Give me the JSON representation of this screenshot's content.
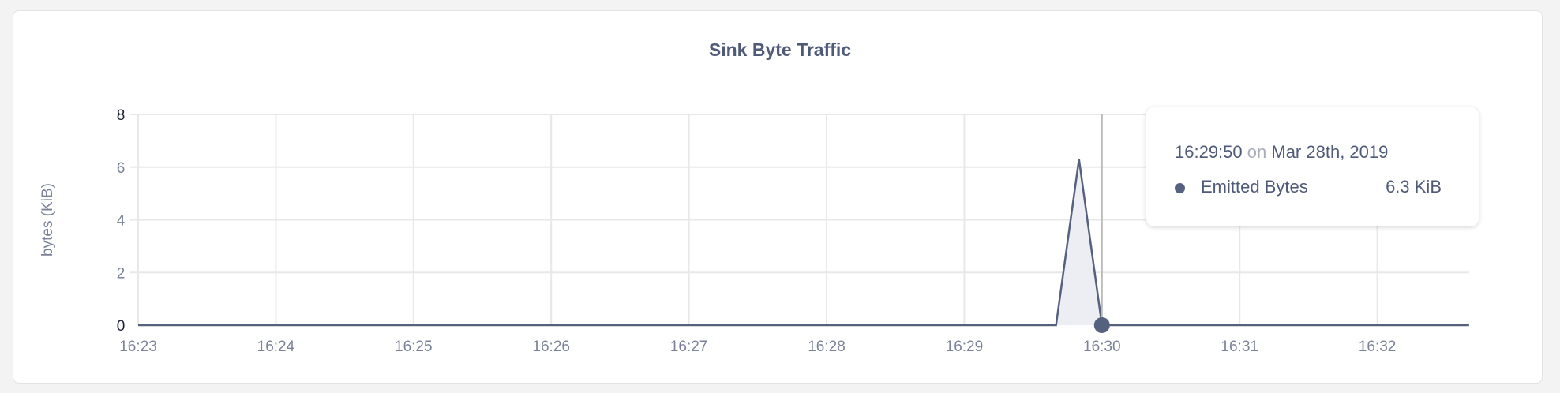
{
  "chart_data": {
    "type": "area",
    "title": "Sink Byte Traffic",
    "ylabel": "bytes (KiB)",
    "xlabel": "",
    "ylim": [
      0,
      8
    ],
    "yticks": [
      "0",
      "2",
      "4",
      "6",
      "8"
    ],
    "xticks": [
      "16:23",
      "16:24",
      "16:25",
      "16:26",
      "16:27",
      "16:28",
      "16:29",
      "16:30",
      "16:31",
      "16:32"
    ],
    "xlim": [
      "16:23:00",
      "16:32:40"
    ],
    "grid": true,
    "series": [
      {
        "name": "Emitted Bytes",
        "color": "#56617f",
        "x": [
          "16:23:00",
          "16:29:40",
          "16:29:50",
          "16:30:00",
          "16:32:40"
        ],
        "y": [
          0,
          0,
          6.3,
          0,
          0
        ]
      }
    ],
    "hover_x": "16:30:00"
  },
  "tooltip": {
    "time": "16:29:50",
    "on": "on",
    "date": "Mar 28th, 2019",
    "series_name": "Emitted Bytes",
    "value": "6.3 KiB"
  }
}
